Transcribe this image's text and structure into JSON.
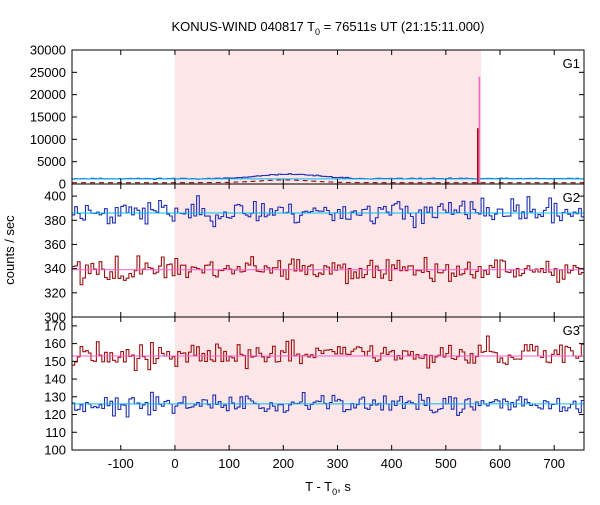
{
  "chart_data": {
    "type": "line",
    "title_parts": {
      "prefix": "KONUS-WIND 040817 T",
      "subscript": "0",
      "suffix": " = 76511s UT (21:15:11.000)"
    },
    "xlabel_parts": {
      "prefix": "T - T",
      "subscript": "0",
      "suffix": ", s"
    },
    "ylabel": "counts / sec",
    "xlim": [
      -190,
      755
    ],
    "x_ticks": [
      -100,
      0,
      100,
      200,
      300,
      400,
      500,
      600,
      700
    ],
    "x_tick_labels": [
      "-100",
      "0",
      "100",
      "200",
      "300",
      "400",
      "500",
      "600",
      "700"
    ],
    "highlight_interval": [
      0,
      565
    ],
    "colors": {
      "highlight": "#fde6e8",
      "blue": "#1f2fb4",
      "red": "#9c1010",
      "cyan": "#00c0f0",
      "pink": "#ff5ad0",
      "spike": "#ff66bb",
      "axis": "#000000"
    },
    "panels": [
      {
        "label": "G1",
        "ylim": [
          0,
          30000
        ],
        "yticks": [
          0,
          5000,
          10000,
          15000,
          20000,
          25000,
          30000
        ],
        "ytick_labels": [
          "0",
          "5000",
          "10000",
          "15000",
          "20000",
          "25000",
          "30000"
        ],
        "series": [
          {
            "name": "G1 lightcurve",
            "color": "#1f2fb4",
            "baseline": 1200,
            "noise": 80,
            "hump": {
              "center": 210,
              "width": 75,
              "amp": 1000
            },
            "seed": 11
          },
          {
            "name": "G1 background",
            "color": "#00c0f0",
            "style": "solid",
            "x": [
              -190,
              755
            ],
            "y": [
              1150,
              1150
            ]
          },
          {
            "name": "G1 red trace",
            "color": "#9c1010",
            "style": "dashed",
            "baseline": 300,
            "hump": {
              "center": 200,
              "width": 70,
              "amp": 600
            }
          }
        ],
        "spikes": [
          {
            "x": 559,
            "y": 12500,
            "color": "#9c1010"
          },
          {
            "x": 562,
            "y": 24000,
            "color": "#ff66bb"
          }
        ]
      },
      {
        "label": "G2",
        "ylim": [
          300,
          410
        ],
        "yticks": [
          300,
          320,
          340,
          360,
          380,
          400
        ],
        "ytick_labels": [
          "300",
          "320",
          "340",
          "360",
          "380",
          "400"
        ],
        "series": [
          {
            "name": "G2 blue",
            "color": "#1f2fb4",
            "baseline": 387,
            "noise": 7,
            "seed": 23
          },
          {
            "name": "G2 blue background",
            "color": "#00c0f0",
            "style": "solid",
            "x": [
              -190,
              755
            ],
            "y": [
              386,
              386
            ]
          },
          {
            "name": "G2 red",
            "color": "#9c1010",
            "baseline": 339,
            "noise": 7,
            "seed": 57
          },
          {
            "name": "G2 red background",
            "color": "#ff5ad0",
            "style": "solid",
            "x": [
              -190,
              755
            ],
            "y": [
              339,
              339
            ]
          }
        ]
      },
      {
        "label": "G3",
        "ylim": [
          100,
          175
        ],
        "yticks": [
          100,
          110,
          120,
          130,
          140,
          150,
          160,
          170
        ],
        "ytick_labels": [
          "100",
          "110",
          "120",
          "130",
          "140",
          "150",
          "160",
          "170"
        ],
        "series": [
          {
            "name": "G3 red",
            "color": "#9c1010",
            "baseline": 154,
            "noise": 5,
            "seed": 91
          },
          {
            "name": "G3 red background",
            "color": "#ff5ad0",
            "style": "solid",
            "x": [
              -190,
              755
            ],
            "y": [
              153,
              153
            ]
          },
          {
            "name": "G3 blue",
            "color": "#1f2fb4",
            "baseline": 126,
            "noise": 4,
            "seed": 133
          },
          {
            "name": "G3 blue background",
            "color": "#00c0f0",
            "style": "solid",
            "x": [
              -190,
              755
            ],
            "y": [
              126,
              126
            ]
          }
        ]
      }
    ]
  }
}
